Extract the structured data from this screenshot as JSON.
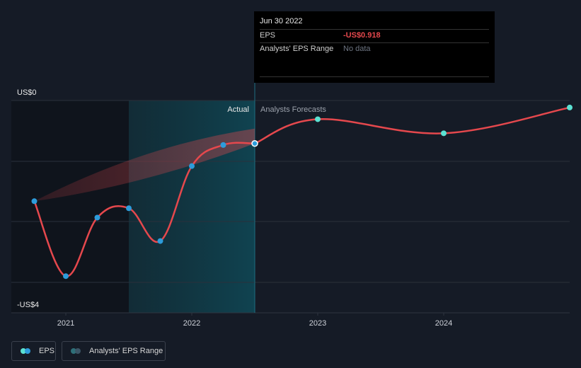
{
  "chart_data": {
    "type": "line",
    "title": "",
    "y_axis_labels": [
      "US$0",
      "-US$4"
    ],
    "ylim": [
      -4.2,
      0
    ],
    "x_ticks": [
      "2021",
      "2022",
      "2023",
      "2024"
    ],
    "section_labels": {
      "actual": "Actual",
      "forecast": "Analysts Forecasts"
    },
    "series": [
      {
        "name": "EPS",
        "kind": "actual",
        "points": [
          {
            "x": 2020.75,
            "y": -2.15
          },
          {
            "x": 2021.0,
            "y": -3.75
          },
          {
            "x": 2021.25,
            "y": -2.5
          },
          {
            "x": 2021.5,
            "y": -2.3
          },
          {
            "x": 2021.75,
            "y": -3.0
          },
          {
            "x": 2022.0,
            "y": -1.4
          },
          {
            "x": 2022.25,
            "y": -0.95
          },
          {
            "x": 2022.5,
            "y": -0.918
          }
        ]
      },
      {
        "name": "EPS",
        "kind": "forecast",
        "points": [
          {
            "x": 2022.5,
            "y": -0.918
          },
          {
            "x": 2023.0,
            "y": -0.4
          },
          {
            "x": 2024.0,
            "y": -0.7
          },
          {
            "x": 2025.0,
            "y": -0.15
          }
        ]
      }
    ],
    "range_band": {
      "name": "Analysts' EPS Range",
      "from": {
        "x": 2020.75,
        "y": -2.15
      },
      "upper_at_end": {
        "x": 2022.5,
        "y": -0.6
      },
      "lower_at_end": {
        "x": 2022.5,
        "y": -0.918
      }
    },
    "colors": {
      "line": "#e5484d",
      "actual_dot": "#2d9cdb",
      "forecast_dot": "#5ce1d2",
      "band": "#e5484d",
      "highlight": "#12b5d6"
    }
  },
  "tooltip": {
    "date": "Jun 30 2022",
    "rows": [
      {
        "label": "EPS",
        "value": "-US$0.918"
      },
      {
        "label": "Analysts' EPS Range",
        "value": "No data"
      }
    ]
  },
  "legend": {
    "items": [
      {
        "label": "EPS"
      },
      {
        "label": "Analysts' EPS Range"
      }
    ]
  }
}
